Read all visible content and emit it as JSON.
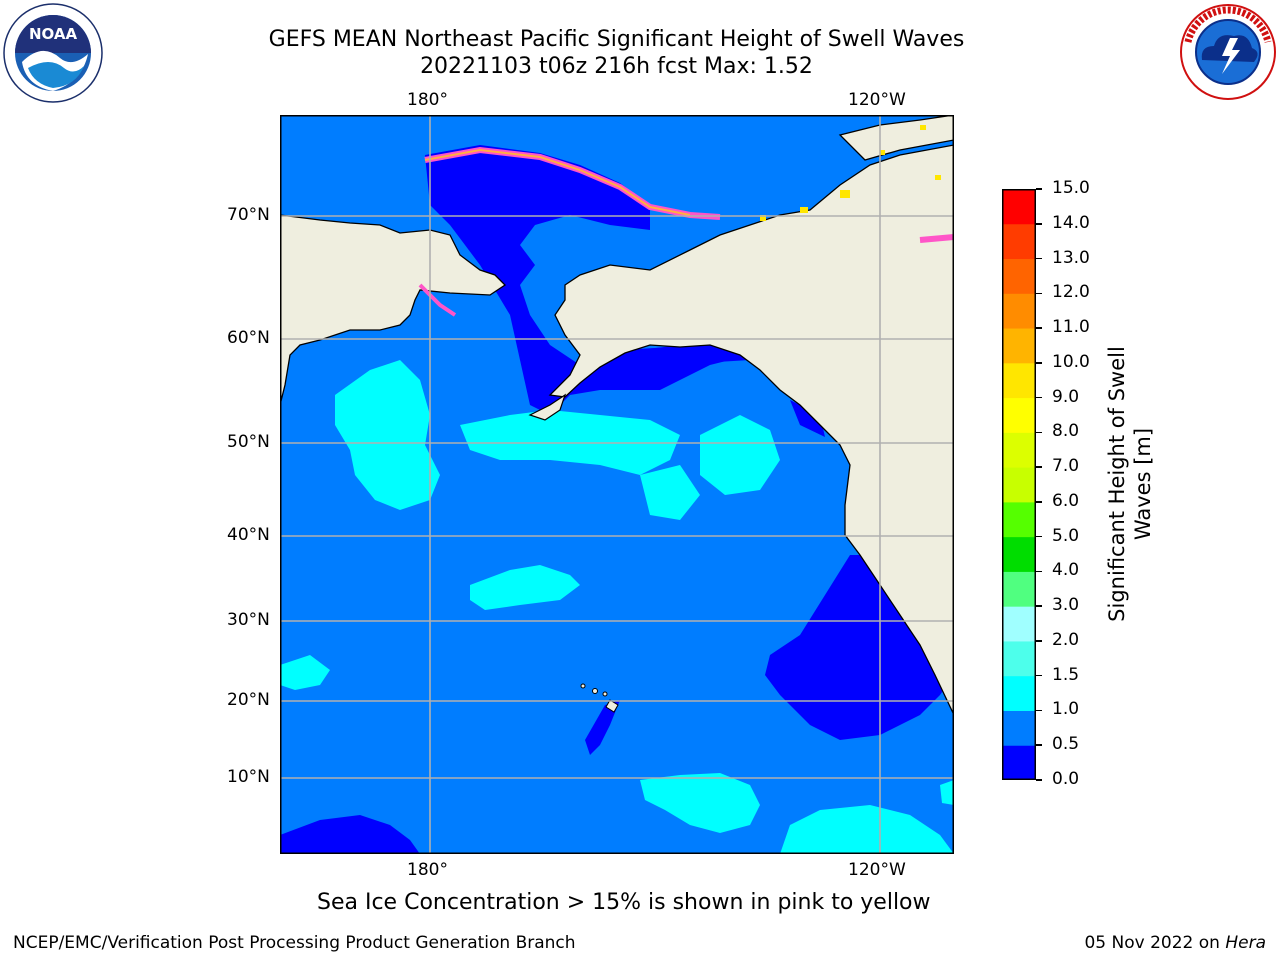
{
  "title": {
    "line1": "GEFS MEAN Northeast Pacific Significant Height of Swell Waves",
    "line2": "20221103 t06z 216h fcst   Max: 1.52"
  },
  "logos": {
    "noaa": {
      "text": "NOAA",
      "ring_text": "NATIONAL OCEANIC AND ATMOSPHERIC ADMINISTRATION · U.S. DEPARTMENT OF COMMERCE"
    },
    "nws": {
      "ring_text": "NATIONAL WEATHER SERVICE"
    }
  },
  "map": {
    "lon_labels": [
      "180°",
      "120°W"
    ],
    "lat_labels": [
      "70°N",
      "60°N",
      "50°N",
      "40°N",
      "30°N",
      "20°N",
      "10°N"
    ],
    "note": "Sea Ice Concentration > 15% is shown in pink to yellow",
    "colors": {
      "land": "#efeedf",
      "ocean_0_05": "#0000ff",
      "ocean_05_10": "#007dff",
      "ocean_10_15": "#00ffff",
      "grid": "#b0b0b0",
      "ice_pink": "#ff55c8",
      "ice_orange": "#ffb040",
      "ice_yellow": "#ffe600"
    }
  },
  "colorbar": {
    "label_line1": "Significant Height of Swell",
    "label_line2": "Waves [m]",
    "ticks": [
      "15.0",
      "14.0",
      "13.0",
      "12.0",
      "11.0",
      "10.0",
      "9.0",
      "8.0",
      "7.0",
      "6.0",
      "5.0",
      "4.0",
      "3.0",
      "2.0",
      "1.5",
      "1.0",
      "0.5",
      "0.0"
    ],
    "colors_bottom_to_top": [
      "#0000ff",
      "#007dff",
      "#00ffff",
      "#4dffeb",
      "#a0ffff",
      "#50ff80",
      "#00dd00",
      "#55ff00",
      "#c8ff00",
      "#dcff00",
      "#ffff00",
      "#ffe600",
      "#ffb400",
      "#ff8c00",
      "#ff6400",
      "#ff3c00",
      "#ff0000"
    ]
  },
  "footer": {
    "left": "NCEP/EMC/Verification Post Processing Product Generation Branch",
    "right_prefix": "05 Nov 2022 on ",
    "right_host": "Hera"
  }
}
